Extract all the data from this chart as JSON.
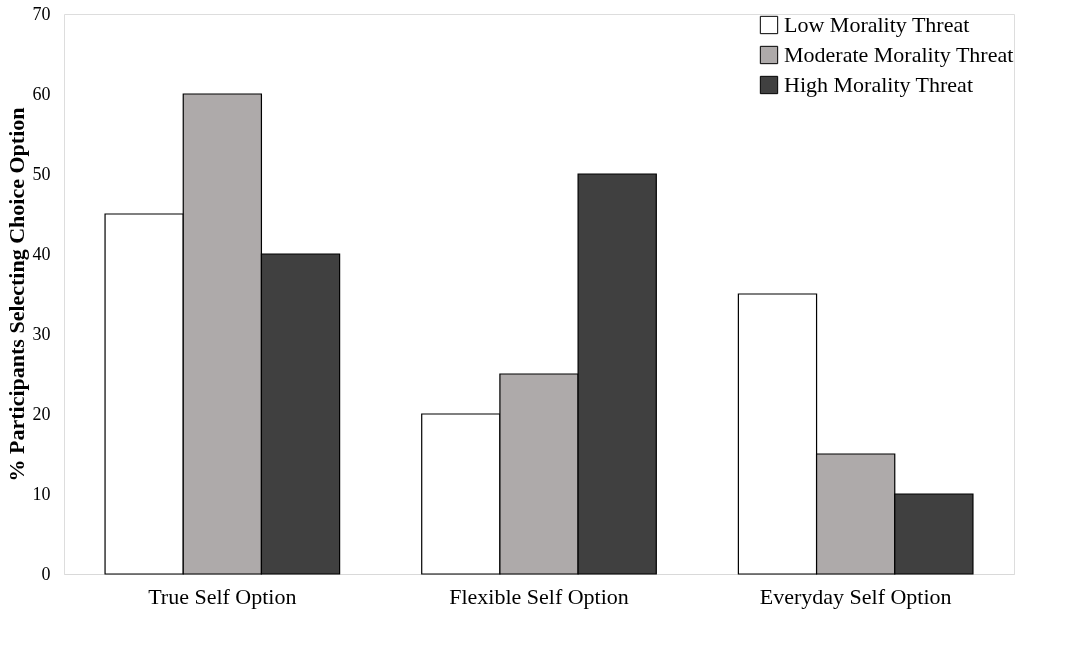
{
  "chart_data": {
    "type": "bar",
    "ylabel": "% Participants Selecting Choice Option",
    "categories": [
      "True Self Option",
      "Flexible Self Option",
      "Everyday Self Option"
    ],
    "series": [
      {
        "name": "Low Morality Threat",
        "color": "#ffffff",
        "values": [
          45,
          20,
          35
        ]
      },
      {
        "name": "Moderate Morality Threat",
        "color": "#aeaaaa",
        "values": [
          60,
          25,
          15
        ]
      },
      {
        "name": "High Morality Threat",
        "color": "#404040",
        "values": [
          40,
          50,
          10
        ]
      }
    ],
    "ylim": [
      0,
      70
    ],
    "yticks": [
      0,
      10,
      20,
      30,
      40,
      50,
      60,
      70
    ],
    "grid": false,
    "legend": "top right"
  }
}
